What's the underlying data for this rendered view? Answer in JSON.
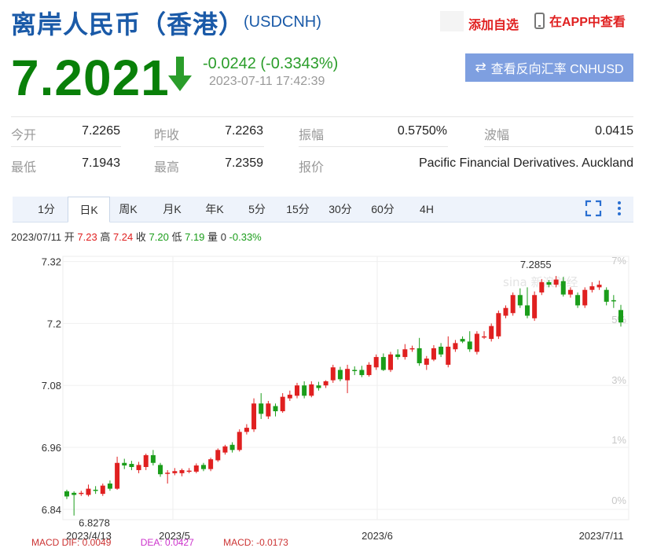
{
  "header": {
    "title": "离岸人民币（香港）",
    "symbol": "(USDCNH)",
    "add_watchlist": "添加自选",
    "view_in_app": "在APP中查看"
  },
  "quote": {
    "price": "7.2021",
    "change": "-0.0242 (-0.3343%)",
    "timestamp": "2023-07-11 17:42:39",
    "reverse_button": "查看反向汇率 CNHUSD",
    "direction": "down",
    "down_color": "#098009"
  },
  "stats": {
    "open_label": "今开",
    "open": "7.2265",
    "prev_close_label": "昨收",
    "prev_close": "7.2263",
    "amplitude_label": "振幅",
    "amplitude": "0.5750%",
    "wave_label": "波幅",
    "wave": "0.0415",
    "low_label": "最低",
    "low": "7.1943",
    "high_label": "最高",
    "high": "7.2359",
    "quote_label": "报价",
    "quote_source": "Pacific Financial Derivatives. Auckland"
  },
  "tabs": [
    "1分",
    "日K",
    "周K",
    "月K",
    "年K",
    "5分",
    "15分",
    "30分",
    "60分",
    "4H"
  ],
  "active_tab": "日K",
  "info_bar": {
    "date": "2023/07/11",
    "open_label": "开",
    "open": "7.23",
    "high_label": "高",
    "high": "7.24",
    "close_label": "收",
    "close": "7.20",
    "low_label": "低",
    "low": "7.19",
    "vol_label": "量",
    "vol": "0",
    "pct": "-0.33%"
  },
  "macd_row": {
    "dif": "MACD  DIF: 0.0049",
    "dea": "DEA: 0.0427",
    "macd": "MACD: -0.0173"
  },
  "chart_data": {
    "type": "candlestick",
    "y_ticks": [
      "7.32",
      "7.2",
      "7.08",
      "6.96",
      "6.84"
    ],
    "y_range": [
      6.82,
      7.33
    ],
    "pct_ticks": [
      "7%",
      "5%",
      "3%",
      "1%",
      "0%"
    ],
    "x_labels": [
      "2023/4/13",
      "2023/5",
      "2023/6",
      "2023/7/11"
    ],
    "max_label": "7.2855",
    "min_label": "6.8278",
    "watermark": "sina 新浪财经",
    "up_color": "#e02020",
    "down_color": "#1a9d1a",
    "candles": [
      {
        "o": 6.875,
        "c": 6.865,
        "h": 6.878,
        "l": 6.86
      },
      {
        "o": 6.872,
        "c": 6.868,
        "h": 6.875,
        "l": 6.828
      },
      {
        "o": 6.87,
        "c": 6.872,
        "h": 6.876,
        "l": 6.866
      },
      {
        "o": 6.868,
        "c": 6.88,
        "h": 6.888,
        "l": 6.865
      },
      {
        "o": 6.878,
        "c": 6.876,
        "h": 6.885,
        "l": 6.87
      },
      {
        "o": 6.87,
        "c": 6.886,
        "h": 6.89,
        "l": 6.866
      },
      {
        "o": 6.89,
        "c": 6.88,
        "h": 6.896,
        "l": 6.876
      },
      {
        "o": 6.88,
        "c": 6.93,
        "h": 6.942,
        "l": 6.878
      },
      {
        "o": 6.93,
        "c": 6.925,
        "h": 6.938,
        "l": 6.918
      },
      {
        "o": 6.928,
        "c": 6.922,
        "h": 6.934,
        "l": 6.916
      },
      {
        "o": 6.916,
        "c": 6.926,
        "h": 6.932,
        "l": 6.91
      },
      {
        "o": 6.922,
        "c": 6.945,
        "h": 6.948,
        "l": 6.916
      },
      {
        "o": 6.945,
        "c": 6.93,
        "h": 6.955,
        "l": 6.925
      },
      {
        "o": 6.926,
        "c": 6.908,
        "h": 6.93,
        "l": 6.903
      },
      {
        "o": 6.911,
        "c": 6.911,
        "h": 6.916,
        "l": 6.89
      },
      {
        "o": 6.91,
        "c": 6.914,
        "h": 6.92,
        "l": 6.906
      },
      {
        "o": 6.91,
        "c": 6.916,
        "h": 6.919,
        "l": 6.904
      },
      {
        "o": 6.913,
        "c": 6.915,
        "h": 6.92,
        "l": 6.91
      },
      {
        "o": 6.913,
        "c": 6.925,
        "h": 6.929,
        "l": 6.91
      },
      {
        "o": 6.926,
        "c": 6.918,
        "h": 6.93,
        "l": 6.914
      },
      {
        "o": 6.918,
        "c": 6.937,
        "h": 6.94,
        "l": 6.914
      },
      {
        "o": 6.935,
        "c": 6.955,
        "h": 6.958,
        "l": 6.932
      },
      {
        "o": 6.95,
        "c": 6.962,
        "h": 6.965,
        "l": 6.946
      },
      {
        "o": 6.965,
        "c": 6.955,
        "h": 6.97,
        "l": 6.95
      },
      {
        "o": 6.955,
        "c": 6.99,
        "h": 6.995,
        "l": 6.952
      },
      {
        "o": 6.99,
        "c": 6.998,
        "h": 7.005,
        "l": 6.985
      },
      {
        "o": 6.995,
        "c": 7.045,
        "h": 7.055,
        "l": 6.99
      },
      {
        "o": 7.045,
        "c": 7.025,
        "h": 7.065,
        "l": 7.015
      },
      {
        "o": 7.02,
        "c": 7.045,
        "h": 7.05,
        "l": 7.015
      },
      {
        "o": 7.04,
        "c": 7.03,
        "h": 7.045,
        "l": 7.02
      },
      {
        "o": 7.03,
        "c": 7.058,
        "h": 7.065,
        "l": 7.027
      },
      {
        "o": 7.055,
        "c": 7.062,
        "h": 7.07,
        "l": 7.05
      },
      {
        "o": 7.06,
        "c": 7.08,
        "h": 7.085,
        "l": 7.055
      },
      {
        "o": 7.08,
        "c": 7.06,
        "h": 7.088,
        "l": 7.055
      },
      {
        "o": 7.06,
        "c": 7.082,
        "h": 7.088,
        "l": 7.057
      },
      {
        "o": 7.08,
        "c": 7.075,
        "h": 7.087,
        "l": 7.07
      },
      {
        "o": 7.08,
        "c": 7.088,
        "h": 7.09,
        "l": 7.075
      },
      {
        "o": 7.09,
        "c": 7.115,
        "h": 7.12,
        "l": 7.085
      },
      {
        "o": 7.11,
        "c": 7.092,
        "h": 7.116,
        "l": 7.088
      },
      {
        "o": 7.09,
        "c": 7.112,
        "h": 7.12,
        "l": 7.065
      },
      {
        "o": 7.11,
        "c": 7.108,
        "h": 7.117,
        "l": 7.1
      },
      {
        "o": 7.11,
        "c": 7.1,
        "h": 7.118,
        "l": 7.096
      },
      {
        "o": 7.1,
        "c": 7.12,
        "h": 7.125,
        "l": 7.097
      },
      {
        "o": 7.115,
        "c": 7.135,
        "h": 7.14,
        "l": 7.11
      },
      {
        "o": 7.135,
        "c": 7.11,
        "h": 7.142,
        "l": 7.108
      },
      {
        "o": 7.11,
        "c": 7.14,
        "h": 7.145,
        "l": 7.106
      },
      {
        "o": 7.14,
        "c": 7.135,
        "h": 7.15,
        "l": 7.13
      },
      {
        "o": 7.135,
        "c": 7.15,
        "h": 7.16,
        "l": 7.13
      },
      {
        "o": 7.15,
        "c": 7.152,
        "h": 7.157,
        "l": 7.145
      },
      {
        "o": 7.152,
        "c": 7.123,
        "h": 7.172,
        "l": 7.118
      },
      {
        "o": 7.12,
        "c": 7.132,
        "h": 7.137,
        "l": 7.11
      },
      {
        "o": 7.13,
        "c": 7.152,
        "h": 7.158,
        "l": 7.127
      },
      {
        "o": 7.155,
        "c": 7.14,
        "h": 7.162,
        "l": 7.135
      },
      {
        "o": 7.12,
        "c": 7.155,
        "h": 7.175,
        "l": 7.115
      },
      {
        "o": 7.15,
        "c": 7.162,
        "h": 7.168,
        "l": 7.145
      },
      {
        "o": 7.17,
        "c": 7.165,
        "h": 7.175,
        "l": 7.162
      },
      {
        "o": 7.165,
        "c": 7.15,
        "h": 7.185,
        "l": 7.145
      },
      {
        "o": 7.145,
        "c": 7.18,
        "h": 7.185,
        "l": 7.14
      },
      {
        "o": 7.175,
        "c": 7.175,
        "h": 7.185,
        "l": 7.17
      },
      {
        "o": 7.17,
        "c": 7.195,
        "h": 7.2,
        "l": 7.165
      },
      {
        "o": 7.175,
        "c": 7.22,
        "h": 7.225,
        "l": 7.17
      },
      {
        "o": 7.215,
        "c": 7.23,
        "h": 7.235,
        "l": 7.21
      },
      {
        "o": 7.22,
        "c": 7.255,
        "h": 7.26,
        "l": 7.215
      },
      {
        "o": 7.255,
        "c": 7.235,
        "h": 7.268,
        "l": 7.23
      },
      {
        "o": 7.235,
        "c": 7.215,
        "h": 7.27,
        "l": 7.21
      },
      {
        "o": 7.21,
        "c": 7.255,
        "h": 7.262,
        "l": 7.205
      },
      {
        "o": 7.26,
        "c": 7.28,
        "h": 7.286,
        "l": 7.255
      },
      {
        "o": 7.28,
        "c": 7.275,
        "h": 7.284,
        "l": 7.27
      },
      {
        "o": 7.275,
        "c": 7.285,
        "h": 7.292,
        "l": 7.27
      },
      {
        "o": 7.282,
        "c": 7.256,
        "h": 7.29,
        "l": 7.252
      },
      {
        "o": 7.256,
        "c": 7.265,
        "h": 7.27,
        "l": 7.25
      },
      {
        "o": 7.255,
        "c": 7.235,
        "h": 7.26,
        "l": 7.23
      },
      {
        "o": 7.235,
        "c": 7.265,
        "h": 7.27,
        "l": 7.23
      },
      {
        "o": 7.265,
        "c": 7.272,
        "h": 7.28,
        "l": 7.26
      },
      {
        "o": 7.27,
        "c": 7.275,
        "h": 7.283,
        "l": 7.265
      },
      {
        "o": 7.265,
        "c": 7.242,
        "h": 7.27,
        "l": 7.235
      },
      {
        "o": 7.245,
        "c": 7.243,
        "h": 7.255,
        "l": 7.23
      },
      {
        "o": 7.226,
        "c": 7.202,
        "h": 7.236,
        "l": 7.194
      }
    ]
  }
}
